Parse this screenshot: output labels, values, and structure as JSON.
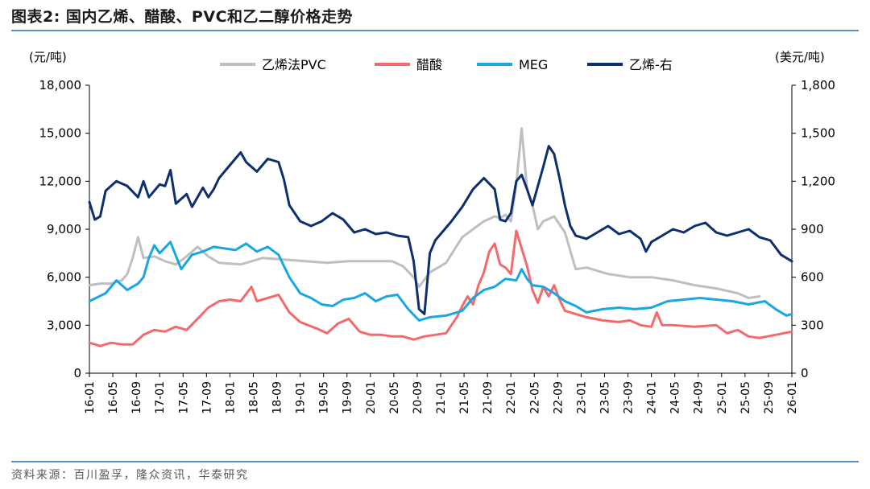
{
  "header": {
    "title": "图表2:   国内乙烯、醋酸、PVC和乙二醇价格走势"
  },
  "footer": {
    "source": "资料来源：百川盈孚，隆众资讯，华泰研究"
  },
  "chart_data": {
    "type": "line",
    "title": "国内乙烯、醋酸、PVC和乙二醇价格走势",
    "ylabel_left": "(元/吨)",
    "ylabel_right": "(美元/吨)",
    "ylim_left": [
      0,
      18000
    ],
    "ylim_right": [
      0,
      1800
    ],
    "yticks_left": [
      "0",
      "3,000",
      "6,000",
      "9,000",
      "12,000",
      "15,000",
      "18,000"
    ],
    "yticks_right": [
      "0",
      "300",
      "600",
      "900",
      "1,200",
      "1,500",
      "1,800"
    ],
    "xticks": [
      "16-01",
      "16-05",
      "16-09",
      "17-01",
      "17-05",
      "17-09",
      "18-01",
      "18-05",
      "18-09",
      "19-01",
      "19-05",
      "19-09",
      "20-01",
      "20-05",
      "20-09",
      "21-01",
      "21-05",
      "21-09",
      "22-01",
      "22-05",
      "22-09",
      "23-01",
      "23-05",
      "23-09",
      "24-01",
      "24-05",
      "24-09",
      "25-01",
      "25-05",
      "25-09",
      "26-01"
    ],
    "legend": [
      "乙烯法PVC",
      "醋酸",
      "MEG",
      "乙烯-右"
    ],
    "series": [
      {
        "name": "乙烯法PVC",
        "color": "#bfbfbf",
        "axis": "left",
        "points": [
          [
            0,
            5500
          ],
          [
            2,
            5600
          ],
          [
            4,
            5600
          ],
          [
            6,
            5800
          ],
          [
            7,
            6200
          ],
          [
            8,
            7200
          ],
          [
            9,
            8500
          ],
          [
            10,
            7200
          ],
          [
            12,
            7300
          ],
          [
            14,
            7000
          ],
          [
            16,
            6800
          ],
          [
            18,
            7300
          ],
          [
            20,
            7900
          ],
          [
            22,
            7300
          ],
          [
            24,
            6900
          ],
          [
            28,
            6800
          ],
          [
            32,
            7200
          ],
          [
            36,
            7100
          ],
          [
            40,
            7000
          ],
          [
            44,
            6900
          ],
          [
            48,
            7000
          ],
          [
            52,
            7000
          ],
          [
            56,
            7000
          ],
          [
            58,
            6700
          ],
          [
            60,
            6000
          ],
          [
            61,
            5400
          ],
          [
            63,
            6300
          ],
          [
            66,
            6900
          ],
          [
            69,
            8500
          ],
          [
            71,
            9000
          ],
          [
            73,
            9500
          ],
          [
            75,
            9800
          ],
          [
            76,
            9700
          ],
          [
            77,
            9900
          ],
          [
            78,
            9500
          ],
          [
            79,
            11800
          ],
          [
            80,
            15300
          ],
          [
            81,
            11500
          ],
          [
            82,
            10500
          ],
          [
            83,
            9000
          ],
          [
            84,
            9500
          ],
          [
            86,
            9800
          ],
          [
            88,
            8800
          ],
          [
            90,
            6500
          ],
          [
            92,
            6600
          ],
          [
            96,
            6200
          ],
          [
            100,
            6000
          ],
          [
            104,
            6000
          ],
          [
            108,
            5800
          ],
          [
            112,
            5500
          ],
          [
            116,
            5300
          ],
          [
            120,
            5000
          ],
          [
            122,
            4700
          ],
          [
            124,
            4800
          ]
        ]
      },
      {
        "name": "醋酸",
        "color": "#f4696b",
        "axis": "left",
        "points": [
          [
            0,
            1900
          ],
          [
            2,
            1700
          ],
          [
            4,
            1900
          ],
          [
            6,
            1800
          ],
          [
            8,
            1800
          ],
          [
            10,
            2400
          ],
          [
            12,
            2700
          ],
          [
            14,
            2600
          ],
          [
            16,
            2900
          ],
          [
            18,
            2700
          ],
          [
            20,
            3400
          ],
          [
            22,
            4100
          ],
          [
            24,
            4500
          ],
          [
            26,
            4600
          ],
          [
            28,
            4500
          ],
          [
            30,
            5400
          ],
          [
            31,
            4500
          ],
          [
            33,
            4700
          ],
          [
            35,
            4900
          ],
          [
            37,
            3800
          ],
          [
            39,
            3200
          ],
          [
            42,
            2800
          ],
          [
            44,
            2500
          ],
          [
            46,
            3100
          ],
          [
            48,
            3400
          ],
          [
            50,
            2600
          ],
          [
            52,
            2400
          ],
          [
            54,
            2400
          ],
          [
            56,
            2300
          ],
          [
            58,
            2300
          ],
          [
            60,
            2100
          ],
          [
            62,
            2300
          ],
          [
            64,
            2400
          ],
          [
            66,
            2500
          ],
          [
            68,
            3500
          ],
          [
            69,
            4200
          ],
          [
            70,
            4800
          ],
          [
            71,
            4300
          ],
          [
            72,
            5500
          ],
          [
            73,
            6300
          ],
          [
            74,
            7600
          ],
          [
            75,
            8100
          ],
          [
            76,
            6800
          ],
          [
            77,
            6600
          ],
          [
            78,
            6200
          ],
          [
            79,
            8900
          ],
          [
            80,
            7800
          ],
          [
            81,
            6700
          ],
          [
            82,
            5200
          ],
          [
            83,
            4400
          ],
          [
            84,
            5400
          ],
          [
            85,
            4800
          ],
          [
            86,
            5500
          ],
          [
            87,
            4600
          ],
          [
            88,
            3900
          ],
          [
            90,
            3700
          ],
          [
            92,
            3500
          ],
          [
            95,
            3300
          ],
          [
            98,
            3200
          ],
          [
            100,
            3300
          ],
          [
            102,
            3000
          ],
          [
            104,
            2900
          ],
          [
            105,
            3800
          ],
          [
            106,
            3000
          ],
          [
            108,
            3000
          ],
          [
            112,
            2900
          ],
          [
            116,
            3000
          ],
          [
            118,
            2500
          ],
          [
            120,
            2700
          ],
          [
            122,
            2300
          ],
          [
            124,
            2200
          ],
          [
            127,
            2400
          ],
          [
            130,
            2600
          ]
        ]
      },
      {
        "name": "MEG",
        "color": "#1aa7e0",
        "axis": "left",
        "points": [
          [
            0,
            4500
          ],
          [
            3,
            5000
          ],
          [
            5,
            5800
          ],
          [
            7,
            5200
          ],
          [
            9,
            5600
          ],
          [
            10,
            6000
          ],
          [
            11,
            7200
          ],
          [
            12,
            8000
          ],
          [
            13,
            7500
          ],
          [
            15,
            8200
          ],
          [
            17,
            6500
          ],
          [
            19,
            7400
          ],
          [
            21,
            7600
          ],
          [
            23,
            7900
          ],
          [
            25,
            7800
          ],
          [
            27,
            7700
          ],
          [
            29,
            8100
          ],
          [
            31,
            7600
          ],
          [
            33,
            7900
          ],
          [
            35,
            7400
          ],
          [
            37,
            6000
          ],
          [
            39,
            5000
          ],
          [
            41,
            4700
          ],
          [
            43,
            4300
          ],
          [
            45,
            4200
          ],
          [
            47,
            4600
          ],
          [
            49,
            4700
          ],
          [
            51,
            5000
          ],
          [
            53,
            4500
          ],
          [
            55,
            4800
          ],
          [
            57,
            4900
          ],
          [
            59,
            4000
          ],
          [
            61,
            3300
          ],
          [
            63,
            3500
          ],
          [
            66,
            3600
          ],
          [
            69,
            3900
          ],
          [
            71,
            4700
          ],
          [
            73,
            5200
          ],
          [
            75,
            5400
          ],
          [
            77,
            5900
          ],
          [
            79,
            5800
          ],
          [
            80,
            6500
          ],
          [
            81,
            5900
          ],
          [
            82,
            5500
          ],
          [
            84,
            5400
          ],
          [
            86,
            5000
          ],
          [
            88,
            4500
          ],
          [
            90,
            4200
          ],
          [
            92,
            3800
          ],
          [
            95,
            4000
          ],
          [
            98,
            4100
          ],
          [
            101,
            4000
          ],
          [
            104,
            4100
          ],
          [
            107,
            4500
          ],
          [
            110,
            4600
          ],
          [
            113,
            4700
          ],
          [
            116,
            4600
          ],
          [
            119,
            4500
          ],
          [
            122,
            4300
          ],
          [
            125,
            4500
          ],
          [
            127,
            4000
          ],
          [
            129,
            3600
          ],
          [
            130,
            3700
          ]
        ]
      },
      {
        "name": "乙烯-右",
        "color": "#0d2f6e",
        "axis": "right",
        "points": [
          [
            0,
            1070
          ],
          [
            1,
            960
          ],
          [
            2,
            980
          ],
          [
            3,
            1140
          ],
          [
            5,
            1200
          ],
          [
            7,
            1170
          ],
          [
            9,
            1100
          ],
          [
            10,
            1200
          ],
          [
            11,
            1100
          ],
          [
            13,
            1180
          ],
          [
            14,
            1170
          ],
          [
            15,
            1270
          ],
          [
            16,
            1060
          ],
          [
            18,
            1120
          ],
          [
            19,
            1040
          ],
          [
            20,
            1100
          ],
          [
            21,
            1160
          ],
          [
            22,
            1100
          ],
          [
            23,
            1150
          ],
          [
            24,
            1220
          ],
          [
            26,
            1300
          ],
          [
            28,
            1380
          ],
          [
            29,
            1320
          ],
          [
            31,
            1260
          ],
          [
            33,
            1340
          ],
          [
            35,
            1320
          ],
          [
            36,
            1210
          ],
          [
            37,
            1050
          ],
          [
            38,
            1000
          ],
          [
            39,
            950
          ],
          [
            41,
            920
          ],
          [
            43,
            950
          ],
          [
            45,
            1000
          ],
          [
            46,
            980
          ],
          [
            47,
            960
          ],
          [
            49,
            880
          ],
          [
            51,
            900
          ],
          [
            53,
            870
          ],
          [
            55,
            880
          ],
          [
            57,
            860
          ],
          [
            59,
            850
          ],
          [
            60,
            700
          ],
          [
            61,
            400
          ],
          [
            62,
            370
          ],
          [
            63,
            750
          ],
          [
            64,
            830
          ],
          [
            65,
            870
          ],
          [
            67,
            950
          ],
          [
            69,
            1040
          ],
          [
            71,
            1150
          ],
          [
            73,
            1220
          ],
          [
            75,
            1150
          ],
          [
            76,
            960
          ],
          [
            77,
            950
          ],
          [
            78,
            1000
          ],
          [
            79,
            1200
          ],
          [
            80,
            1240
          ],
          [
            81,
            1150
          ],
          [
            82,
            1050
          ],
          [
            83,
            1170
          ],
          [
            84,
            1290
          ],
          [
            85,
            1420
          ],
          [
            86,
            1370
          ],
          [
            87,
            1220
          ],
          [
            88,
            1050
          ],
          [
            89,
            920
          ],
          [
            90,
            860
          ],
          [
            92,
            840
          ],
          [
            94,
            880
          ],
          [
            96,
            920
          ],
          [
            98,
            870
          ],
          [
            100,
            890
          ],
          [
            102,
            840
          ],
          [
            103,
            760
          ],
          [
            104,
            820
          ],
          [
            106,
            860
          ],
          [
            108,
            900
          ],
          [
            110,
            880
          ],
          [
            112,
            920
          ],
          [
            114,
            940
          ],
          [
            116,
            880
          ],
          [
            118,
            860
          ],
          [
            120,
            880
          ],
          [
            122,
            900
          ],
          [
            124,
            850
          ],
          [
            126,
            830
          ],
          [
            128,
            740
          ],
          [
            130,
            700
          ]
        ]
      }
    ]
  }
}
